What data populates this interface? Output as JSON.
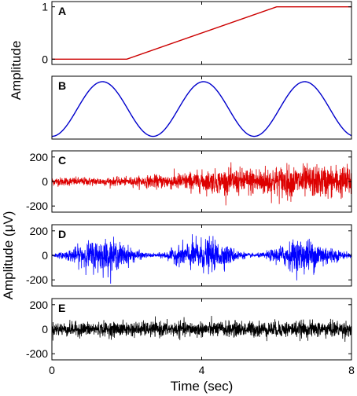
{
  "chart_data": {
    "type": "line",
    "xlabel": "Time (sec)",
    "xlim": [
      0,
      8
    ],
    "xticks": [
      0,
      4,
      8
    ],
    "ylabel_top": "Amplitude",
    "ylabel_bottom": "Amplitude (μV)",
    "panels": [
      {
        "label": "A",
        "color": "#cc0000",
        "ylim": [
          -0.1,
          1.1
        ],
        "yticks": [
          0,
          1
        ],
        "series": {
          "x": [
            0,
            2,
            6,
            8
          ],
          "y": [
            0,
            0,
            1,
            1
          ]
        }
      },
      {
        "label": "B",
        "color": "#0000cc",
        "ylim": [
          -0.05,
          1.1
        ],
        "yticks": [],
        "series": {
          "kind": "sine",
          "period": 2.7,
          "phase_min_at": 0,
          "min": 0,
          "max": 1
        }
      },
      {
        "label": "C",
        "color": "#dd0000",
        "ylim": [
          -250,
          250
        ],
        "yticks": [
          200,
          0,
          -200
        ],
        "series": {
          "kind": "noise",
          "envelope": {
            "x": [
              0,
              2,
              4,
              6,
              8
            ],
            "y": [
              30,
              30,
              75,
              115,
              115
            ]
          }
        }
      },
      {
        "label": "D",
        "color": "#0000ff",
        "ylim": [
          -250,
          250
        ],
        "yticks": [
          200,
          0,
          -200
        ],
        "series": {
          "kind": "modulated-noise",
          "period": 2.7,
          "peak": 130,
          "floor": 15
        }
      },
      {
        "label": "E",
        "color": "#000000",
        "ylim": [
          -250,
          250
        ],
        "yticks": [
          200,
          0,
          -200
        ],
        "series": {
          "kind": "noise",
          "envelope": {
            "x": [
              0,
              8
            ],
            "y": [
              50,
              60
            ]
          }
        }
      }
    ]
  }
}
